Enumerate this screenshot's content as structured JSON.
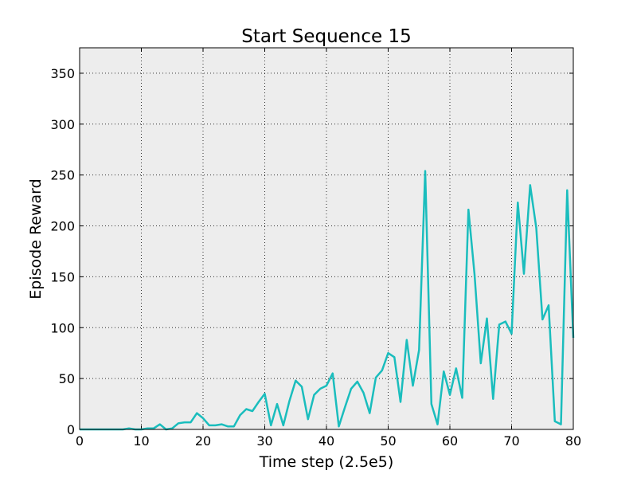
{
  "chart_data": {
    "type": "line",
    "title": "Start Sequence 15",
    "xlabel": "Time step (2.5e5)",
    "ylabel": "Episode Reward",
    "xlim": [
      0,
      80
    ],
    "ylim": [
      0,
      375
    ],
    "xticks": [
      "0",
      "10",
      "20",
      "30",
      "40",
      "50",
      "60",
      "70",
      "80"
    ],
    "yticks": [
      "0",
      "50",
      "100",
      "150",
      "200",
      "250",
      "300",
      "350"
    ],
    "grid": true,
    "colors": {
      "plot_bg": "#ededed",
      "line": "#1abdbd"
    },
    "series": [
      {
        "x": [
          0,
          1,
          2,
          3,
          4,
          5,
          6,
          7,
          8,
          9,
          10,
          11,
          12,
          13,
          14,
          15,
          16,
          17,
          18,
          19,
          20,
          21,
          22,
          23,
          24,
          25,
          26,
          27,
          28,
          29,
          30,
          31,
          32,
          33,
          34,
          35,
          36,
          37,
          38,
          39,
          40,
          41,
          42,
          43,
          44,
          45,
          46,
          47,
          48,
          49,
          50,
          51,
          52,
          53,
          54,
          55,
          56,
          57,
          58,
          59,
          60,
          61,
          62,
          63,
          64,
          65,
          66,
          67,
          68,
          69,
          70,
          71,
          72,
          73,
          74,
          75,
          76,
          77,
          78,
          79,
          80
        ],
        "values": [
          0,
          0,
          0,
          0,
          0,
          0,
          0,
          0,
          1,
          0,
          0,
          1,
          1,
          5,
          0,
          1,
          6,
          7,
          7,
          16,
          11,
          4,
          4,
          5,
          3,
          3,
          14,
          20,
          18,
          27,
          35,
          4,
          25,
          4,
          28,
          48,
          42,
          10,
          34,
          40,
          43,
          55,
          3,
          22,
          40,
          47,
          36,
          16,
          51,
          58,
          75,
          71,
          27,
          88,
          43,
          78,
          254,
          25,
          5,
          57,
          34,
          60,
          31,
          216,
          152,
          65,
          109,
          30,
          103,
          106,
          94,
          223,
          153,
          240,
          198,
          108,
          122,
          8,
          5,
          235,
          90
        ]
      }
    ]
  }
}
